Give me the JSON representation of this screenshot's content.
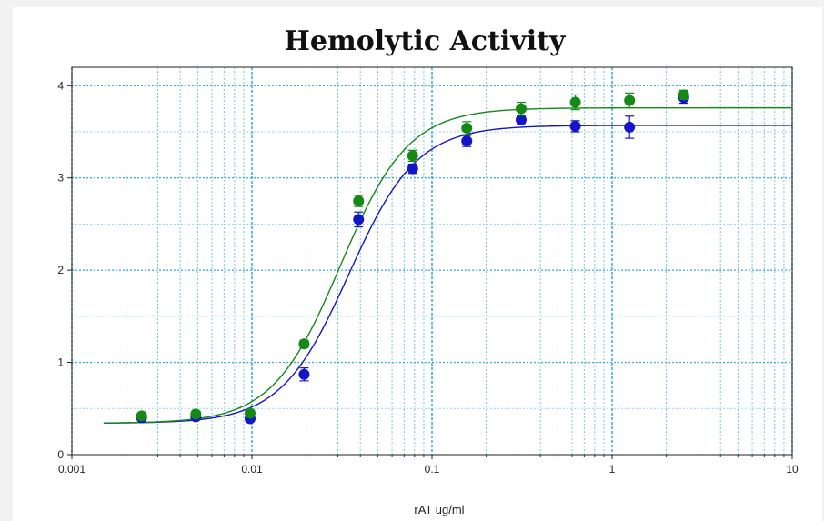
{
  "chart_data": {
    "type": "scatter",
    "title": "Hemolytic Activity",
    "xlabel": "rAT ug/ml",
    "ylabel": "",
    "xscale": "log",
    "xlim": [
      0.001,
      10
    ],
    "ylim": [
      0,
      4.2
    ],
    "x_ticks": [
      "0.001",
      "0.01",
      "0.1",
      "1",
      "10"
    ],
    "y_ticks": [
      "0",
      "1",
      "2",
      "3",
      "4"
    ],
    "grid": true,
    "legend": "none",
    "x": [
      0.00244,
      0.00488,
      0.00977,
      0.0195,
      0.0391,
      0.0781,
      0.156,
      0.3125,
      0.625,
      1.25,
      2.5
    ],
    "series": [
      {
        "color": "#1515c8",
        "values": [
          0.4,
          0.41,
          0.39,
          0.87,
          2.55,
          3.1,
          3.4,
          3.63,
          3.56,
          3.55,
          3.87
        ],
        "errors": [
          0.03,
          0.03,
          0.03,
          0.07,
          0.08,
          0.05,
          0.06,
          0.04,
          0.06,
          0.12,
          0.06
        ],
        "fit": {
          "bottom": 0.34,
          "top": 3.57,
          "ec50": 0.0345,
          "hill": 2.3
        }
      },
      {
        "color": "#158815",
        "values": [
          0.42,
          0.44,
          0.45,
          1.2,
          2.75,
          3.24,
          3.54,
          3.75,
          3.82,
          3.84,
          3.9
        ],
        "errors": [
          0.03,
          0.03,
          0.03,
          0.04,
          0.06,
          0.06,
          0.07,
          0.07,
          0.08,
          0.08,
          0.05
        ],
        "fit": {
          "bottom": 0.34,
          "top": 3.76,
          "ec50": 0.031,
          "hill": 2.3
        }
      }
    ]
  }
}
